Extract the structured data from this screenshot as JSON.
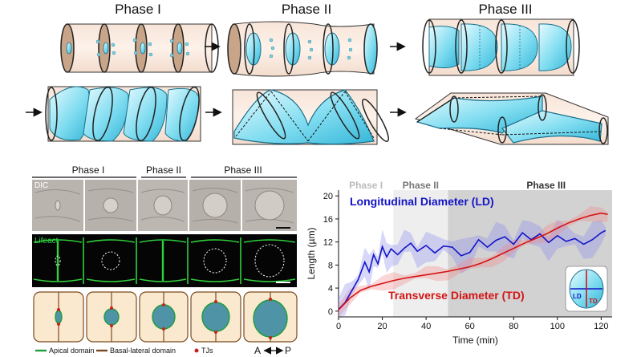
{
  "schematic": {
    "phase_titles": [
      "Phase I",
      "Phase II",
      "Phase III"
    ]
  },
  "panel_images": {
    "phase_labels": [
      "Phase I",
      "Phase II",
      "Phase III"
    ],
    "row_labels": [
      "DIC",
      "Lifeact"
    ],
    "legend": {
      "apical": "Apical domain",
      "basal": "Basal-lateral domain",
      "tj": "TJs",
      "axis": "A",
      "axis_end": "P"
    },
    "colors": {
      "apical": "#1f9d3a",
      "basal": "#7a4a1e",
      "tj": "#cc1f1f",
      "lumen": "#5fa8b8"
    }
  },
  "chart_data": {
    "type": "line",
    "phase_labels": [
      "Phase I",
      "Phase II",
      "Phase III"
    ],
    "phase_bounds": [
      0,
      25,
      50,
      125
    ],
    "xlabel": "Time (min)",
    "ylabel": "Length (µm)",
    "xlim": [
      0,
      125
    ],
    "ylim": [
      -1,
      21
    ],
    "xticks": [
      0,
      20,
      40,
      60,
      80,
      100,
      120
    ],
    "yticks": [
      0,
      4,
      8,
      12,
      16,
      20
    ],
    "series": [
      {
        "name": "Longitudinal Diameter (LD)",
        "color": "#1414c8",
        "x": [
          0,
          3,
          6,
          9,
          12,
          14,
          16,
          18,
          20,
          22,
          24,
          27,
          30,
          33,
          36,
          40,
          44,
          48,
          52,
          56,
          60,
          64,
          68,
          72,
          76,
          80,
          84,
          88,
          92,
          96,
          100,
          104,
          108,
          112,
          116,
          120,
          122
        ],
        "y": [
          0.3,
          1.5,
          3.5,
          5.5,
          8.5,
          6.8,
          9.8,
          8.2,
          11.2,
          9.4,
          10.8,
          9.8,
          10.9,
          11.8,
          10.4,
          11.4,
          10.1,
          11.3,
          11.1,
          9.6,
          10.2,
          12.4,
          11.1,
          12.3,
          12.9,
          11.6,
          13.6,
          12.4,
          13.4,
          11.9,
          13.1,
          12.1,
          12.6,
          11.6,
          12.4,
          13.6,
          14.0
        ]
      },
      {
        "name": "Transverse Diameter (TD)",
        "color": "#d41414",
        "x": [
          0,
          5,
          10,
          15,
          20,
          25,
          30,
          35,
          40,
          45,
          50,
          55,
          60,
          65,
          70,
          75,
          80,
          85,
          90,
          95,
          100,
          105,
          110,
          115,
          120,
          123
        ],
        "y": [
          0.2,
          2.2,
          3.6,
          4.3,
          4.8,
          5.3,
          5.7,
          6.0,
          6.3,
          6.6,
          6.9,
          7.3,
          7.7,
          8.3,
          9.1,
          10.0,
          10.9,
          11.8,
          12.6,
          13.4,
          14.4,
          15.3,
          16.0,
          16.6,
          17.0,
          16.8
        ]
      }
    ],
    "inset": {
      "ld": "LD",
      "td": "TD"
    }
  }
}
